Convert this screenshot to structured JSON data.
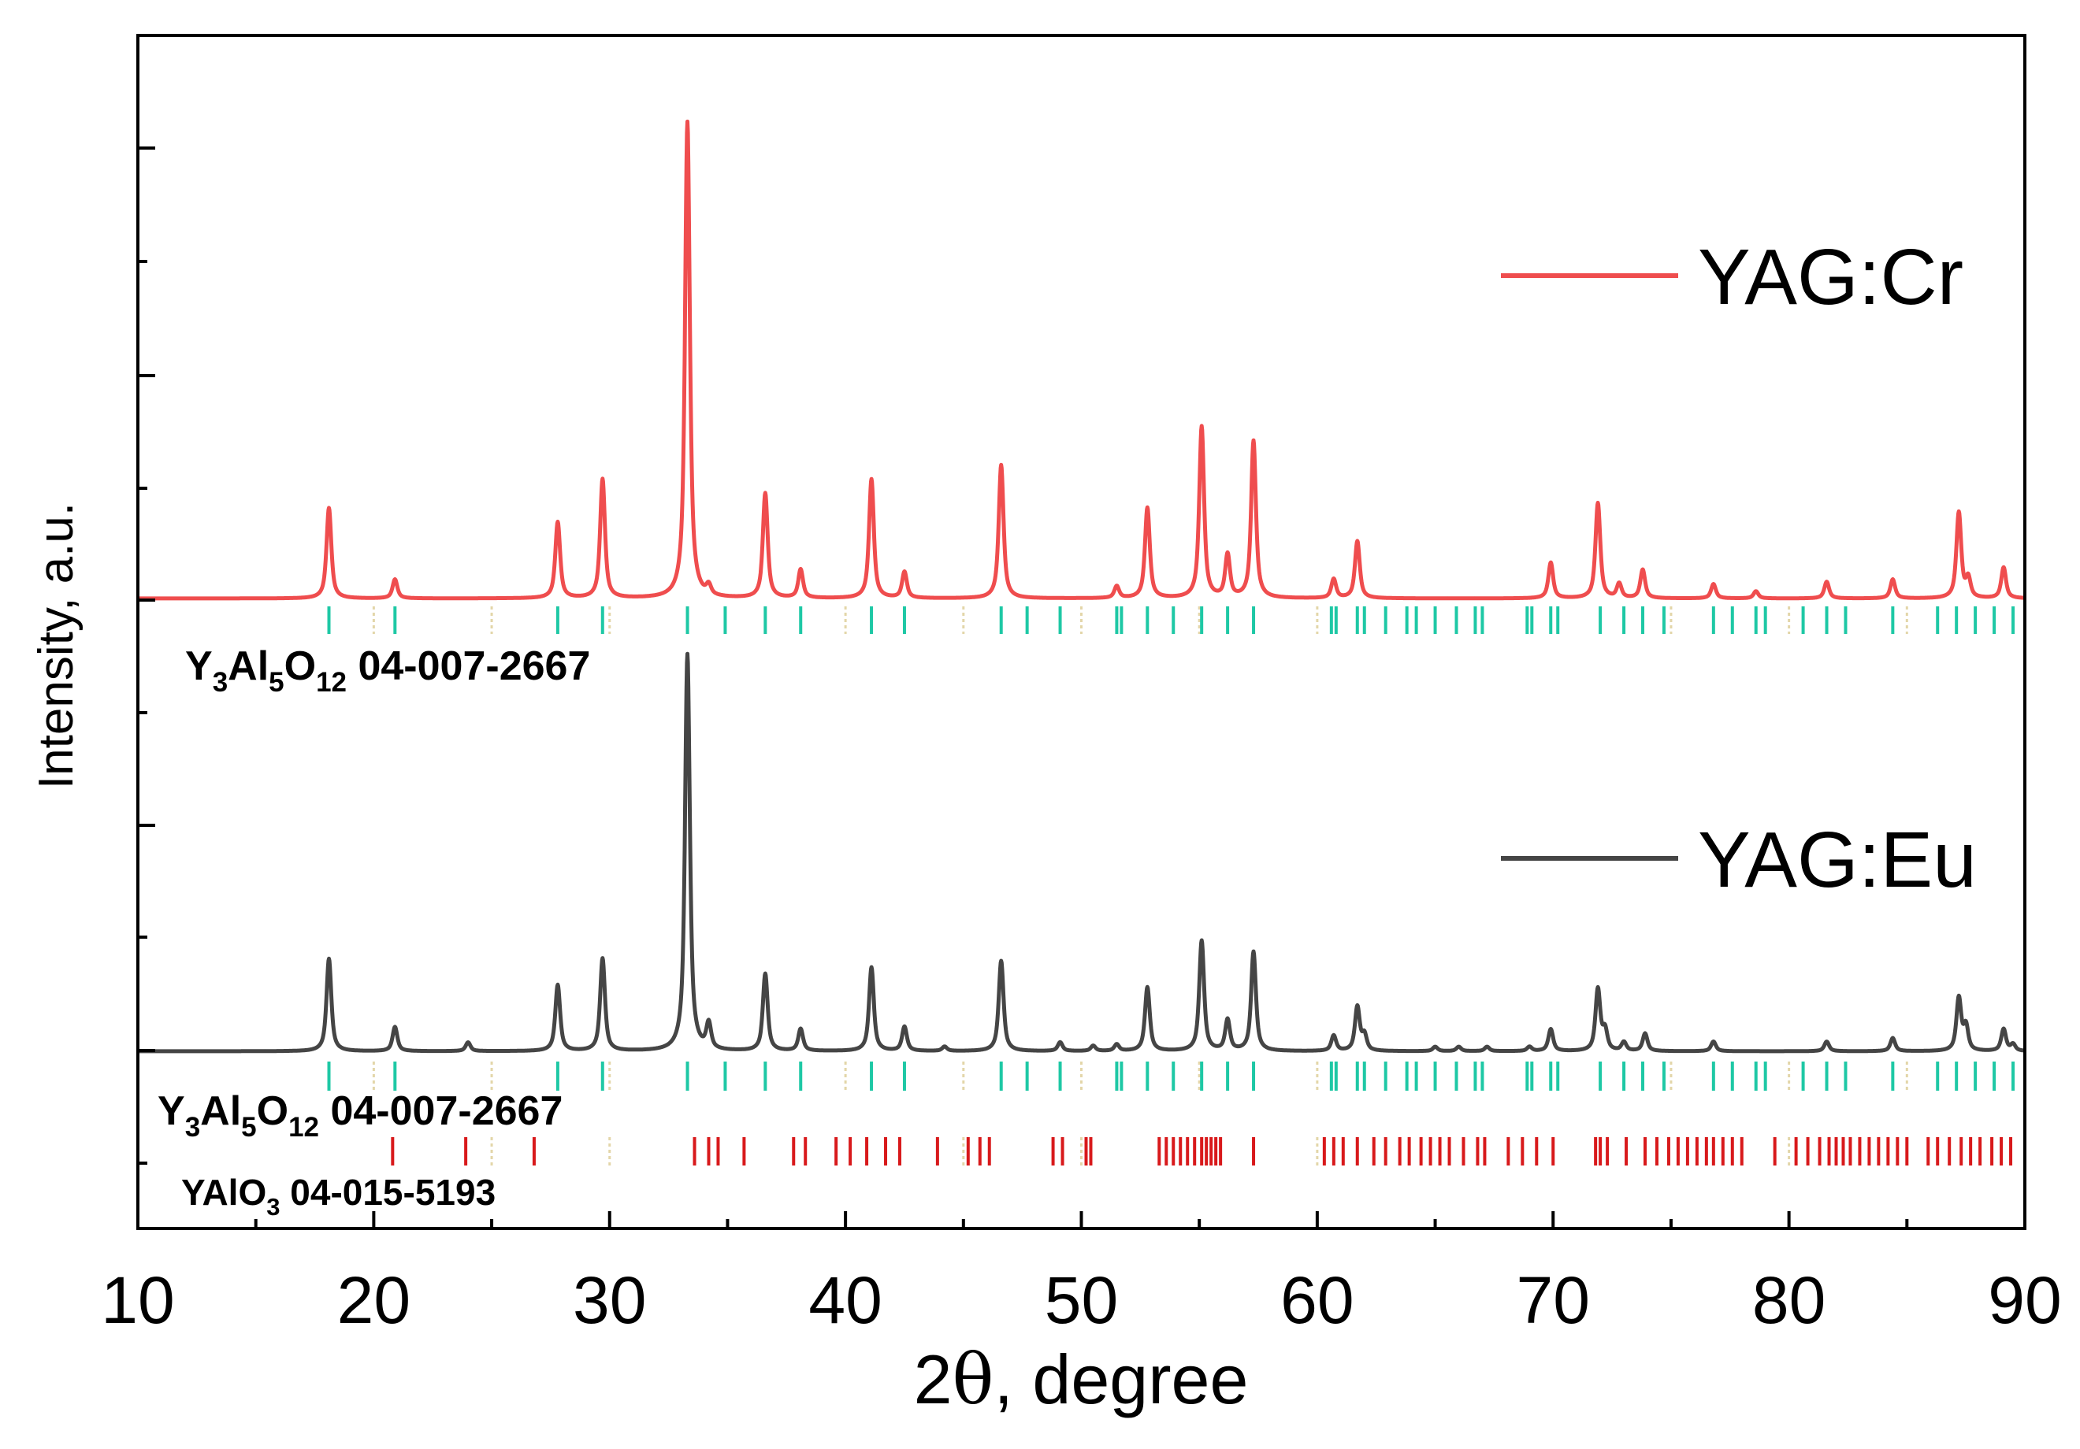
{
  "chart_data": {
    "type": "line",
    "xlabel_main": "2",
    "xlabel_theta": "θ",
    "xlabel_rest": ", degree",
    "ylabel": "Intensity, a.u.",
    "xlim": [
      10,
      90
    ],
    "x_ticks": [
      "10",
      "20",
      "30",
      "40",
      "50",
      "60",
      "70",
      "80",
      "90"
    ],
    "series": [
      {
        "name": "YAG:Cr",
        "color": "#e8353a",
        "lineColor": "#ef4d4e",
        "peaks": [
          [
            18.1,
            0.19
          ],
          [
            20.9,
            0.04
          ],
          [
            27.8,
            0.16
          ],
          [
            29.7,
            0.25
          ],
          [
            33.3,
            1.0
          ],
          [
            34.2,
            0.02
          ],
          [
            36.6,
            0.22
          ],
          [
            38.1,
            0.06
          ],
          [
            41.1,
            0.25
          ],
          [
            42.5,
            0.055
          ],
          [
            46.6,
            0.28
          ],
          [
            51.5,
            0.025
          ],
          [
            52.8,
            0.19
          ],
          [
            55.1,
            0.36
          ],
          [
            56.2,
            0.09
          ],
          [
            57.3,
            0.33
          ],
          [
            60.7,
            0.04
          ],
          [
            61.7,
            0.12
          ],
          [
            69.9,
            0.075
          ],
          [
            71.9,
            0.2
          ],
          [
            72.8,
            0.03
          ],
          [
            73.8,
            0.06
          ],
          [
            76.8,
            0.03
          ],
          [
            78.6,
            0.015
          ],
          [
            81.6,
            0.035
          ],
          [
            84.4,
            0.04
          ],
          [
            87.2,
            0.18
          ],
          [
            87.6,
            0.04
          ],
          [
            89.1,
            0.065
          ]
        ]
      },
      {
        "name": "YAG:Eu",
        "color": "#555555",
        "lineColor": "#454545",
        "peaks": [
          [
            18.1,
            0.21
          ],
          [
            20.9,
            0.055
          ],
          [
            24.0,
            0.02
          ],
          [
            27.8,
            0.15
          ],
          [
            29.7,
            0.21
          ],
          [
            33.3,
            0.9
          ],
          [
            34.2,
            0.058
          ],
          [
            36.6,
            0.175
          ],
          [
            38.1,
            0.05
          ],
          [
            41.1,
            0.19
          ],
          [
            42.5,
            0.055
          ],
          [
            44.2,
            0.01
          ],
          [
            46.6,
            0.205
          ],
          [
            49.1,
            0.02
          ],
          [
            50.5,
            0.012
          ],
          [
            51.5,
            0.015
          ],
          [
            52.8,
            0.145
          ],
          [
            55.1,
            0.25
          ],
          [
            56.2,
            0.07
          ],
          [
            57.3,
            0.225
          ],
          [
            60.7,
            0.035
          ],
          [
            61.7,
            0.1
          ],
          [
            62.0,
            0.035
          ],
          [
            65.0,
            0.01
          ],
          [
            66.0,
            0.01
          ],
          [
            67.2,
            0.01
          ],
          [
            69.0,
            0.01
          ],
          [
            69.9,
            0.05
          ],
          [
            71.9,
            0.14
          ],
          [
            72.2,
            0.045
          ],
          [
            73.0,
            0.02
          ],
          [
            73.9,
            0.04
          ],
          [
            76.8,
            0.022
          ],
          [
            81.6,
            0.022
          ],
          [
            84.4,
            0.03
          ],
          [
            87.2,
            0.12
          ],
          [
            87.5,
            0.055
          ],
          [
            89.1,
            0.05
          ],
          [
            89.5,
            0.015
          ]
        ]
      }
    ],
    "reference_patterns": [
      {
        "formula_parts": [
          [
            "Y",
            ""
          ],
          [
            "3",
            "sub"
          ],
          [
            "Al",
            ""
          ],
          [
            "5",
            "sub"
          ],
          [
            "O",
            ""
          ],
          [
            "12",
            "sub"
          ]
        ],
        "code": " 04-007-2667",
        "color": "#1ec8a5",
        "lines": [
          18.1,
          20.9,
          27.8,
          29.7,
          33.3,
          34.9,
          36.6,
          38.1,
          41.1,
          42.5,
          46.6,
          47.7,
          49.1,
          51.5,
          51.7,
          52.8,
          53.9,
          55.1,
          56.2,
          57.3,
          60.6,
          60.8,
          61.7,
          62.0,
          62.9,
          63.8,
          64.2,
          65.0,
          65.9,
          66.7,
          67.0,
          68.9,
          69.1,
          69.9,
          70.2,
          72.0,
          73.0,
          73.8,
          74.7,
          76.8,
          77.6,
          78.6,
          79.0,
          80.6,
          81.6,
          82.4,
          84.4,
          86.3,
          87.1,
          87.9,
          88.7,
          89.5
        ],
        "faint": [
          20.0,
          25.0,
          30.0,
          40.0,
          45.0,
          50.0,
          55.0,
          60.0,
          75.0,
          80.0,
          85.0
        ]
      },
      {
        "formula_parts": [
          [
            "Y",
            ""
          ],
          [
            "3",
            "sub"
          ],
          [
            "Al",
            ""
          ],
          [
            "5",
            "sub"
          ],
          [
            "O",
            ""
          ],
          [
            "12",
            "sub"
          ]
        ],
        "code": " 04-007-2667",
        "color": "#1ec8a5",
        "lines": [
          18.1,
          20.9,
          27.8,
          29.7,
          33.3,
          34.9,
          36.6,
          38.1,
          41.1,
          42.5,
          46.6,
          47.7,
          49.1,
          51.5,
          51.7,
          52.8,
          53.9,
          55.1,
          56.2,
          57.3,
          60.6,
          60.8,
          61.7,
          62.0,
          62.9,
          63.8,
          64.2,
          65.0,
          65.9,
          66.7,
          67.0,
          68.9,
          69.1,
          69.9,
          70.2,
          72.0,
          73.0,
          73.8,
          74.7,
          76.8,
          77.6,
          78.6,
          79.0,
          80.6,
          81.6,
          82.4,
          84.4,
          86.3,
          87.1,
          87.9,
          88.7,
          89.5
        ],
        "faint": [
          20.0,
          25.0,
          30.0,
          40.0,
          45.0,
          50.0,
          55.0,
          60.0,
          75.0,
          80.0,
          85.0
        ]
      },
      {
        "formula_parts": [
          [
            "YAlO",
            ""
          ],
          [
            "3",
            "sub"
          ]
        ],
        "code": " 04-015-5193",
        "color": "#d8191b",
        "lines": [
          20.8,
          23.9,
          26.8,
          33.6,
          34.2,
          34.6,
          35.7,
          37.8,
          38.3,
          39.6,
          40.2,
          40.9,
          41.7,
          42.3,
          43.9,
          45.2,
          45.7,
          46.1,
          48.8,
          49.2,
          50.2,
          50.4,
          53.3,
          53.6,
          53.9,
          54.2,
          54.5,
          54.8,
          55.1,
          55.3,
          55.5,
          55.7,
          55.9,
          57.3,
          60.3,
          60.7,
          61.1,
          61.7,
          62.4,
          62.9,
          63.5,
          63.9,
          64.4,
          64.8,
          65.2,
          65.6,
          66.2,
          66.8,
          67.1,
          68.1,
          68.7,
          69.3,
          70.0,
          71.8,
          72.0,
          72.3,
          73.1,
          73.9,
          74.4,
          74.9,
          75.3,
          75.7,
          76.1,
          76.5,
          76.8,
          77.2,
          77.6,
          78.0,
          79.4,
          80.3,
          80.8,
          81.3,
          81.7,
          82.0,
          82.3,
          82.6,
          83.0,
          83.4,
          83.8,
          84.2,
          84.6,
          85.0,
          85.9,
          86.3,
          86.8,
          87.3,
          87.7,
          88.1,
          88.6,
          89.0,
          89.4
        ],
        "faint": [
          25.0,
          30.0,
          45.0,
          50.0,
          60.0,
          80.0
        ]
      }
    ],
    "legend": [
      {
        "label": "YAG:Cr"
      },
      {
        "label": "YAG:Eu"
      }
    ]
  }
}
